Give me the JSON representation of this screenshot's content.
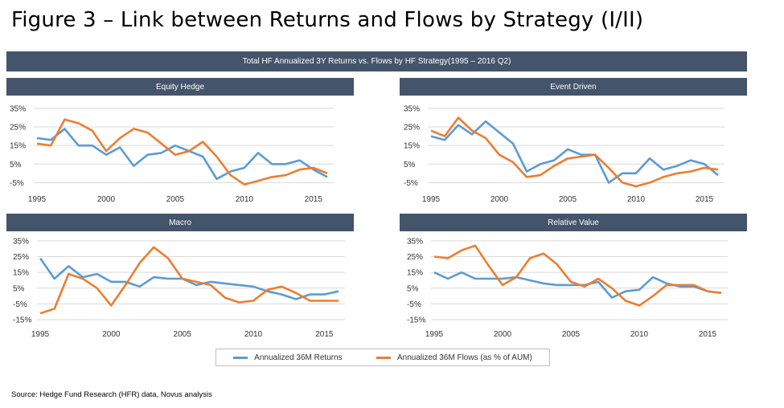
{
  "figure_title": "Figure 3 – Link between Returns and Flows by Strategy (I/II)",
  "banner": "Total HF Annualized 3Y Returns vs. Flows by HF Strategy(1995 – 2016 Q2)",
  "source": "Source: Hedge Fund Research (HFR) data, Novus analysis",
  "colors": {
    "returns": "#5b9bd5",
    "flows": "#ed7d31",
    "bar": "#44546a",
    "grid": "#d9d9d9"
  },
  "legend": {
    "returns_label": "Annualized 36M Returns",
    "flows_label": "Annualized 36M Flows (as % of AUM)"
  },
  "chart_data": [
    {
      "type": "line",
      "title": "Equity Hedge",
      "x": [
        1995,
        1996,
        1997,
        1998,
        1999,
        2000,
        2001,
        2002,
        2003,
        2004,
        2005,
        2006,
        2007,
        2008,
        2009,
        2010,
        2011,
        2012,
        2013,
        2014,
        2015,
        2016
      ],
      "series": [
        {
          "name": "Annualized 36M Returns",
          "values": [
            19,
            18,
            24,
            15,
            15,
            10,
            14,
            4,
            10,
            11,
            15,
            12,
            9,
            -3,
            1,
            3,
            11,
            5,
            5,
            7,
            2,
            -2
          ]
        },
        {
          "name": "Annualized 36M Flows (as % of AUM)",
          "values": [
            16,
            15,
            29,
            27,
            23,
            12,
            19,
            24,
            22,
            16,
            10,
            12,
            17,
            9,
            -1,
            -6,
            -4,
            -2,
            -1,
            2,
            3,
            0
          ]
        }
      ],
      "yticks": [
        -5,
        5,
        15,
        25,
        35
      ],
      "ytick_labels": [
        "-5%",
        "5%",
        "15%",
        "25%",
        "35%"
      ],
      "xticks": [
        1995,
        2000,
        2005,
        2010,
        2015
      ],
      "xtick_labels": [
        "1995",
        "2000",
        "2005",
        "2010",
        "2015"
      ],
      "ylim": [
        -7,
        38
      ]
    },
    {
      "type": "line",
      "title": "Event Driven",
      "x": [
        1995,
        1996,
        1997,
        1998,
        1999,
        2000,
        2001,
        2002,
        2003,
        2004,
        2005,
        2006,
        2007,
        2008,
        2009,
        2010,
        2011,
        2012,
        2013,
        2014,
        2015,
        2016
      ],
      "series": [
        {
          "name": "Annualized 36M Returns",
          "values": [
            20,
            18,
            26,
            21,
            28,
            22,
            16,
            1,
            5,
            7,
            13,
            10,
            10,
            -5,
            0,
            0,
            8,
            2,
            4,
            7,
            5,
            -1
          ]
        },
        {
          "name": "Annualized 36M Flows (as % of AUM)",
          "values": [
            23,
            20,
            30,
            23,
            19,
            10,
            6,
            -2,
            -1,
            4,
            8,
            9,
            10,
            3,
            -5,
            -7,
            -5,
            -2,
            0,
            1,
            3,
            2
          ]
        }
      ],
      "yticks": [
        -5,
        5,
        15,
        25,
        35
      ],
      "ytick_labels": [
        "-5%",
        "5%",
        "15%",
        "25%",
        "35%"
      ],
      "xticks": [
        1995,
        2000,
        2005,
        2010,
        2015
      ],
      "xtick_labels": [
        "1995",
        "2000",
        "2005",
        "2010",
        "2015"
      ],
      "ylim": [
        -7,
        38
      ]
    },
    {
      "type": "line",
      "title": "Macro",
      "x": [
        1995,
        1996,
        1997,
        1998,
        1999,
        2000,
        2001,
        2002,
        2003,
        2004,
        2005,
        2006,
        2007,
        2008,
        2009,
        2010,
        2011,
        2012,
        2013,
        2014,
        2015,
        2016
      ],
      "series": [
        {
          "name": "Annualized 36M Returns",
          "values": [
            24,
            11,
            19,
            12,
            14,
            9,
            9,
            6,
            12,
            11,
            11,
            7,
            9,
            8,
            7,
            6,
            3,
            1,
            -2,
            1,
            1,
            3
          ]
        },
        {
          "name": "Annualized 36M Flows (as % of AUM)",
          "values": [
            -11,
            -8,
            14,
            11,
            5,
            -6,
            7,
            21,
            31,
            24,
            11,
            9,
            7,
            -1,
            -4,
            -3,
            4,
            6,
            2,
            -3,
            -3,
            -3
          ]
        }
      ],
      "yticks": [
        -15,
        -5,
        5,
        15,
        25,
        35
      ],
      "ytick_labels": [
        "-15%",
        "-5%",
        "5%",
        "15%",
        "25%",
        "35%"
      ],
      "xticks": [
        1995,
        2000,
        2005,
        2010,
        2015
      ],
      "xtick_labels": [
        "1995",
        "2000",
        "2005",
        "2010",
        "2015"
      ],
      "ylim": [
        -16,
        37
      ]
    },
    {
      "type": "line",
      "title": "Relative Value",
      "x": [
        1995,
        1996,
        1997,
        1998,
        1999,
        2000,
        2001,
        2002,
        2003,
        2004,
        2005,
        2006,
        2007,
        2008,
        2009,
        2010,
        2011,
        2012,
        2013,
        2014,
        2015,
        2016
      ],
      "series": [
        {
          "name": "Annualized 36M Returns",
          "values": [
            15,
            11,
            15,
            11,
            11,
            11,
            12,
            10,
            8,
            7,
            7,
            7,
            9,
            -1,
            3,
            4,
            12,
            8,
            6,
            6,
            3,
            2
          ]
        },
        {
          "name": "Annualized 36M Flows (as % of AUM)",
          "values": [
            25,
            24,
            29,
            32,
            19,
            7,
            12,
            24,
            27,
            20,
            9,
            6,
            11,
            5,
            -3,
            -6,
            0,
            7,
            7,
            7,
            3,
            2
          ]
        }
      ],
      "yticks": [
        -15,
        -5,
        5,
        15,
        25,
        35
      ],
      "ytick_labels": [
        "-15%",
        "-5%",
        "5%",
        "15%",
        "25%",
        "35%"
      ],
      "xticks": [
        1995,
        2000,
        2005,
        2010,
        2015
      ],
      "xtick_labels": [
        "1995",
        "2000",
        "2005",
        "2010",
        "2015"
      ],
      "ylim": [
        -16,
        37
      ]
    }
  ]
}
